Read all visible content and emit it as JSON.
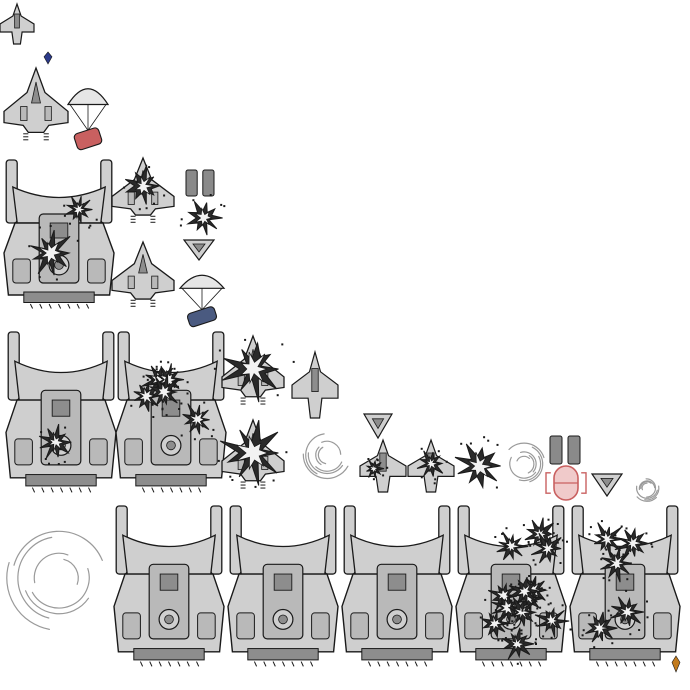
{
  "sheet": {
    "background": "#ffffff",
    "colors": {
      "hull": "#cfcfcf",
      "hull_dark": "#8d8d8d",
      "ink": "#1a1a1a",
      "turret": "#b9b9b9",
      "parachute": "#e6e6e6",
      "canister_red": "#c96060",
      "canister_blue": "#4a5a80",
      "gem_blue": "#2b3a8a",
      "gem_orange": "#c27a1c",
      "explosion": "#2a2a2a",
      "smoke": "#9a9a9a"
    },
    "sprites": [
      {
        "kind": "fighter-small",
        "icon": "small-fighter-icon"
      },
      {
        "kind": "gem",
        "icon": "blue-gem-icon",
        "variant": "blue"
      },
      {
        "kind": "fighter-medium",
        "icon": "medium-fighter-icon"
      },
      {
        "kind": "parachute-crate",
        "icon": "parachute-icon",
        "variant": "red"
      },
      {
        "kind": "mothership",
        "icon": "mothership-icon",
        "damage": "light"
      },
      {
        "kind": "fighter-medium",
        "icon": "medium-fighter-icon",
        "damage": "exploding"
      },
      {
        "kind": "engine-pods",
        "icon": "engine-pods-icon"
      },
      {
        "kind": "explosion",
        "icon": "explosion-icon"
      },
      {
        "kind": "wing-debris",
        "icon": "wing-debris-icon"
      },
      {
        "kind": "fighter-medium",
        "icon": "medium-fighter-icon"
      },
      {
        "kind": "parachute-crate",
        "icon": "parachute-icon",
        "variant": "blue"
      },
      {
        "kind": "mothership",
        "icon": "mothership-icon",
        "damage": "core-hit"
      },
      {
        "kind": "mothership",
        "icon": "mothership-icon",
        "damage": "heavy"
      },
      {
        "kind": "fighter-medium",
        "icon": "medium-fighter-icon",
        "damage": "destroyed"
      },
      {
        "kind": "fighter-small",
        "icon": "small-fighter-icon"
      },
      {
        "kind": "fighter-medium",
        "icon": "medium-fighter-icon",
        "damage": "destroyed"
      },
      {
        "kind": "smoke",
        "icon": "smoke-puff-icon"
      },
      {
        "kind": "wing-debris",
        "icon": "wing-debris-icon"
      },
      {
        "kind": "fighter-small",
        "icon": "small-fighter-icon",
        "damage": "hit"
      },
      {
        "kind": "fighter-small",
        "icon": "small-fighter-icon",
        "damage": "exploding"
      },
      {
        "kind": "explosion",
        "icon": "explosion-icon"
      },
      {
        "kind": "smoke",
        "icon": "smoke-puff-icon"
      },
      {
        "kind": "engine-pods",
        "icon": "engine-pods-icon"
      },
      {
        "kind": "canister",
        "icon": "red-canister-icon"
      },
      {
        "kind": "wing-debris",
        "icon": "wing-debris-icon"
      },
      {
        "kind": "smoke",
        "icon": "smoke-puff-icon"
      },
      {
        "kind": "smoke",
        "icon": "large-smoke-icon"
      },
      {
        "kind": "mothership",
        "icon": "mothership-icon"
      },
      {
        "kind": "mothership",
        "icon": "mothership-icon"
      },
      {
        "kind": "mothership",
        "icon": "mothership-icon"
      },
      {
        "kind": "mothership",
        "icon": "mothership-icon",
        "damage": "destroyed"
      },
      {
        "kind": "mothership",
        "icon": "mothership-icon",
        "damage": "heavy"
      },
      {
        "kind": "gem",
        "icon": "orange-gem-icon",
        "variant": "orange"
      }
    ]
  }
}
